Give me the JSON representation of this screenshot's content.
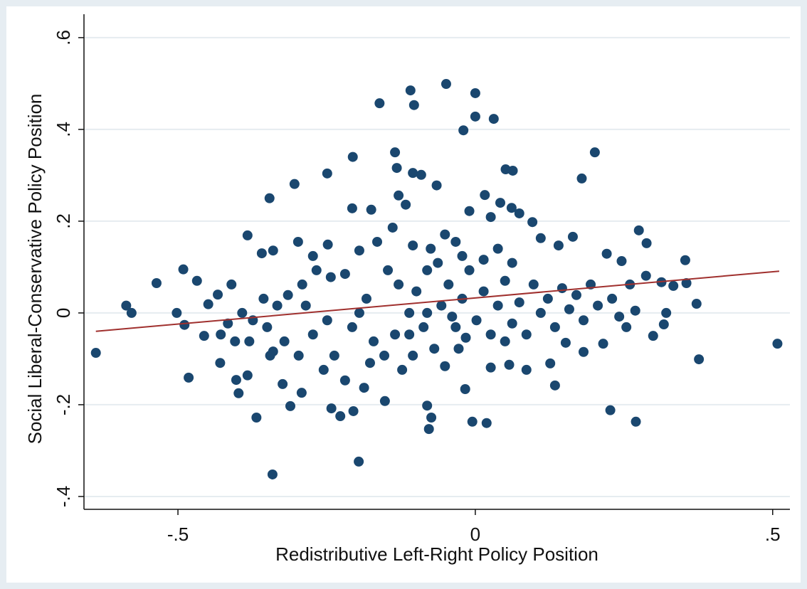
{
  "chart_data": {
    "type": "scatter",
    "x_label": "Redistributive Left-Right Policy Position",
    "y_label": "Social Liberal-Conservative Policy Position",
    "color": "#1a476f",
    "xlim": [
      -0.658,
      0.529
    ],
    "ylim": [
      -0.428,
      0.651
    ],
    "xticks": [
      {
        "value": -0.5,
        "label": "-.5"
      },
      0,
      {
        "value": 0.5,
        "label": ".5"
      }
    ],
    "yticks": [
      {
        "value": -0.4,
        "label": "-.4"
      },
      {
        "value": -0.2,
        "label": "-.2"
      },
      0,
      {
        "value": 0.2,
        "label": ".2"
      },
      {
        "value": 0.4,
        "label": ".4"
      },
      {
        "value": 0.6,
        "label": ".6"
      }
    ],
    "grid": true,
    "x": [
      -0.638,
      -0.587,
      -0.578,
      -0.536,
      -0.502,
      -0.491,
      -0.489,
      -0.482,
      -0.468,
      -0.456,
      -0.449,
      -0.433,
      -0.429,
      -0.41,
      -0.402,
      -0.398,
      -0.383,
      -0.383,
      -0.368,
      -0.359,
      -0.346,
      -0.341,
      -0.34,
      -0.34,
      -0.324,
      -0.311,
      -0.304,
      -0.298,
      -0.292,
      -0.273,
      -0.249,
      -0.248,
      -0.242,
      -0.227,
      -0.206,
      -0.207,
      -0.205,
      -0.196,
      -0.187,
      -0.175,
      -0.161,
      -0.152,
      -0.135,
      -0.132,
      -0.129,
      -0.117,
      -0.109,
      -0.103,
      -0.105,
      -0.091,
      -0.081,
      -0.078,
      -0.074,
      -0.065,
      -0.049,
      -0.02,
      -0.017,
      -0.005,
      0.0,
      0.0,
      0.019,
      0.031,
      0.016,
      0.051,
      0.063,
      0.061,
      0.134,
      0.179,
      0.201,
      0.227,
      0.27,
      0.275,
      0.288,
      0.321,
      0.353,
      0.355,
      0.372,
      0.376,
      0.508,
      0.221,
      0.246,
      0.287,
      0.313,
      0.333,
      0.317,
      0.299,
      0.269,
      0.242,
      0.215,
      0.182,
      0.152,
      0.126,
      0.086,
      0.057,
      0.026,
      0.164,
      0.14,
      0.11,
      0.096,
      0.074,
      0.042,
      0.026,
      -0.01,
      -0.033,
      -0.051,
      -0.075,
      -0.105,
      -0.139,
      -0.165,
      -0.195,
      -0.219,
      -0.243,
      -0.267,
      -0.291,
      -0.315,
      -0.333,
      -0.356,
      -0.374,
      -0.392,
      -0.416,
      -0.428,
      -0.38,
      -0.35,
      -0.321,
      -0.297,
      -0.273,
      -0.255,
      -0.237,
      -0.219,
      -0.207,
      -0.195,
      -0.183,
      -0.171,
      -0.153,
      -0.135,
      -0.123,
      -0.111,
      -0.099,
      -0.087,
      -0.069,
      -0.057,
      -0.045,
      -0.033,
      -0.022,
      -0.01,
      0.002,
      0.014,
      0.026,
      0.038,
      0.05,
      0.062,
      0.074,
      0.086,
      0.098,
      0.11,
      0.122,
      0.134,
      0.146,
      0.158,
      0.17,
      0.182,
      0.194,
      0.206,
      0.23,
      0.254,
      0.26,
      -0.147,
      -0.129,
      -0.081,
      -0.063,
      -0.022,
      0.014,
      0.038,
      0.062,
      -0.111,
      -0.081,
      -0.039,
      -0.016,
      0.05,
      -0.051,
      -0.028,
      -0.105,
      -0.177,
      -0.249,
      -0.285,
      -0.345,
      -0.404
    ],
    "values": [
      -0.087,
      0.016,
      0.0,
      0.065,
      0.0,
      0.095,
      -0.026,
      -0.141,
      0.07,
      -0.05,
      0.019,
      0.04,
      -0.109,
      0.062,
      -0.146,
      -0.175,
      0.169,
      -0.136,
      -0.228,
      0.13,
      0.25,
      -0.352,
      0.136,
      -0.084,
      -0.155,
      -0.203,
      0.281,
      0.155,
      -0.174,
      0.124,
      0.304,
      0.149,
      -0.208,
      -0.225,
      0.34,
      0.228,
      -0.214,
      -0.324,
      -0.163,
      0.225,
      0.457,
      -0.192,
      0.35,
      0.316,
      0.256,
      0.236,
      0.485,
      0.453,
      0.305,
      0.301,
      -0.202,
      -0.253,
      -0.228,
      0.278,
      0.499,
      0.398,
      -0.166,
      -0.237,
      0.479,
      0.428,
      -0.24,
      0.423,
      0.257,
      0.313,
      0.31,
      0.229,
      -0.158,
      0.293,
      0.35,
      -0.212,
      -0.237,
      0.18,
      0.152,
      0.0,
      0.115,
      0.065,
      0.02,
      -0.101,
      -0.067,
      0.129,
      0.113,
      0.081,
      0.067,
      0.059,
      -0.025,
      -0.05,
      0.005,
      -0.008,
      -0.067,
      -0.085,
      -0.065,
      -0.11,
      -0.124,
      -0.113,
      -0.119,
      0.166,
      0.147,
      0.163,
      0.198,
      0.217,
      0.24,
      0.209,
      0.222,
      0.155,
      0.171,
      0.14,
      0.147,
      0.186,
      0.155,
      0.136,
      0.085,
      0.078,
      0.093,
      0.062,
      0.039,
      0.016,
      0.031,
      -0.016,
      0.0,
      -0.023,
      -0.047,
      -0.062,
      -0.031,
      -0.062,
      -0.093,
      -0.047,
      -0.124,
      -0.093,
      -0.147,
      -0.031,
      0.0,
      0.031,
      -0.062,
      -0.093,
      -0.047,
      -0.124,
      0.0,
      0.047,
      -0.031,
      -0.078,
      0.016,
      0.062,
      -0.031,
      0.031,
      0.093,
      -0.016,
      0.047,
      -0.047,
      0.016,
      0.07,
      -0.023,
      0.023,
      -0.047,
      0.062,
      0.0,
      0.031,
      -0.031,
      0.054,
      0.008,
      0.039,
      -0.016,
      0.062,
      0.016,
      0.031,
      -0.031,
      0.062,
      0.093,
      0.062,
      0.093,
      0.109,
      0.124,
      0.116,
      0.14,
      0.109,
      -0.047,
      0.0,
      -0.008,
      -0.054,
      -0.062,
      -0.116,
      -0.078,
      -0.093,
      -0.109,
      -0.016,
      0.016,
      -0.093,
      -0.062
    ],
    "fit_line": {
      "color": "#a0302e",
      "x": [
        -0.638,
        0.511
      ],
      "values": [
        -0.04,
        0.091
      ]
    }
  }
}
